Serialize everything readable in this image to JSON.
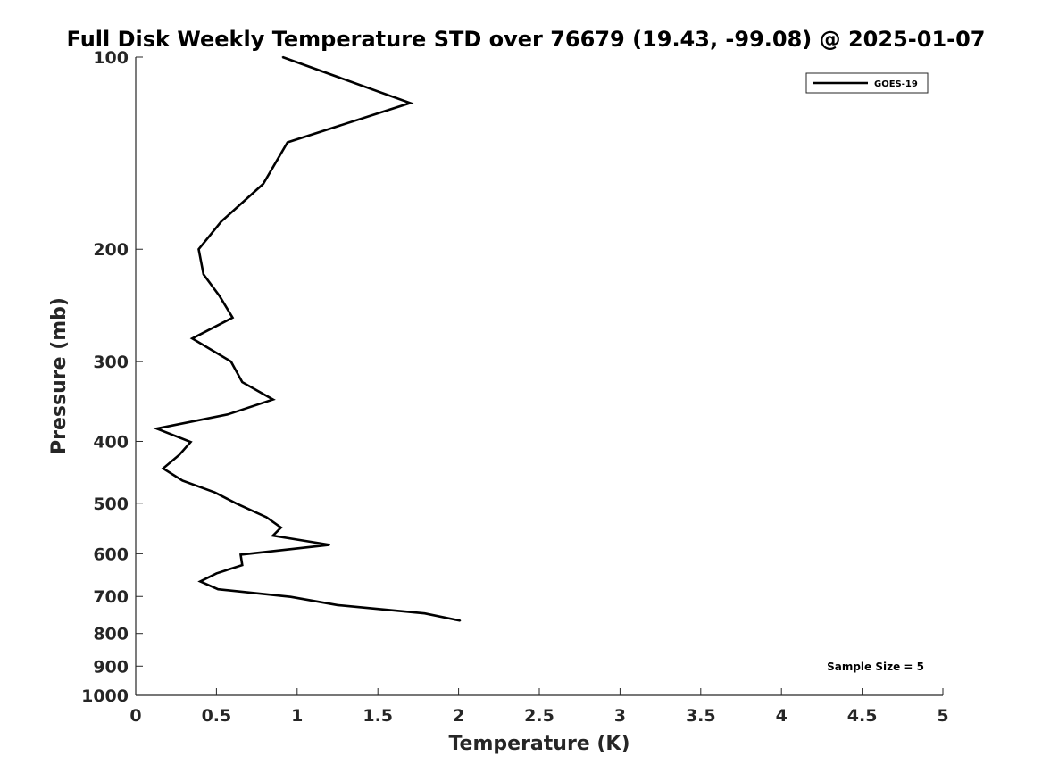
{
  "chart_data": {
    "type": "line",
    "title": "Full Disk Weekly Temperature STD over 76679 (19.43, -99.08) @ 2025-01-07",
    "xlabel": "Temperature (K)",
    "ylabel": "Pressure (mb)",
    "xlim": [
      0,
      5
    ],
    "ylim": [
      100,
      1000
    ],
    "y_scale": "log",
    "y_reversed": true,
    "grid": false,
    "legend_position": "top-right",
    "x_ticks": [
      "0",
      "0.5",
      "1",
      "1.5",
      "2",
      "2.5",
      "3",
      "3.5",
      "4",
      "4.5",
      "5"
    ],
    "y_ticks": [
      "100",
      "200",
      "300",
      "400",
      "500",
      "600",
      "700",
      "800",
      "900",
      "1000"
    ],
    "series": [
      {
        "name": "GOES-19",
        "color": "#000000",
        "points": [
          {
            "x": 0.91,
            "p": 100
          },
          {
            "x": 1.7,
            "p": 118
          },
          {
            "x": 0.94,
            "p": 136
          },
          {
            "x": 0.79,
            "p": 158
          },
          {
            "x": 0.53,
            "p": 181
          },
          {
            "x": 0.39,
            "p": 200
          },
          {
            "x": 0.42,
            "p": 219
          },
          {
            "x": 0.52,
            "p": 237
          },
          {
            "x": 0.6,
            "p": 256
          },
          {
            "x": 0.35,
            "p": 276
          },
          {
            "x": 0.59,
            "p": 300
          },
          {
            "x": 0.66,
            "p": 323
          },
          {
            "x": 0.85,
            "p": 344
          },
          {
            "x": 0.57,
            "p": 363
          },
          {
            "x": 0.13,
            "p": 382
          },
          {
            "x": 0.34,
            "p": 401
          },
          {
            "x": 0.27,
            "p": 420
          },
          {
            "x": 0.17,
            "p": 441
          },
          {
            "x": 0.29,
            "p": 461
          },
          {
            "x": 0.49,
            "p": 481
          },
          {
            "x": 0.62,
            "p": 500
          },
          {
            "x": 0.81,
            "p": 526
          },
          {
            "x": 0.9,
            "p": 546
          },
          {
            "x": 0.85,
            "p": 562
          },
          {
            "x": 1.2,
            "p": 581
          },
          {
            "x": 0.65,
            "p": 602
          },
          {
            "x": 0.66,
            "p": 625
          },
          {
            "x": 0.5,
            "p": 644
          },
          {
            "x": 0.4,
            "p": 663
          },
          {
            "x": 0.51,
            "p": 682
          },
          {
            "x": 0.96,
            "p": 701
          },
          {
            "x": 1.25,
            "p": 722
          },
          {
            "x": 1.79,
            "p": 744
          },
          {
            "x": 2.01,
            "p": 764
          }
        ]
      }
    ],
    "annotation": "Sample Size = 5"
  }
}
